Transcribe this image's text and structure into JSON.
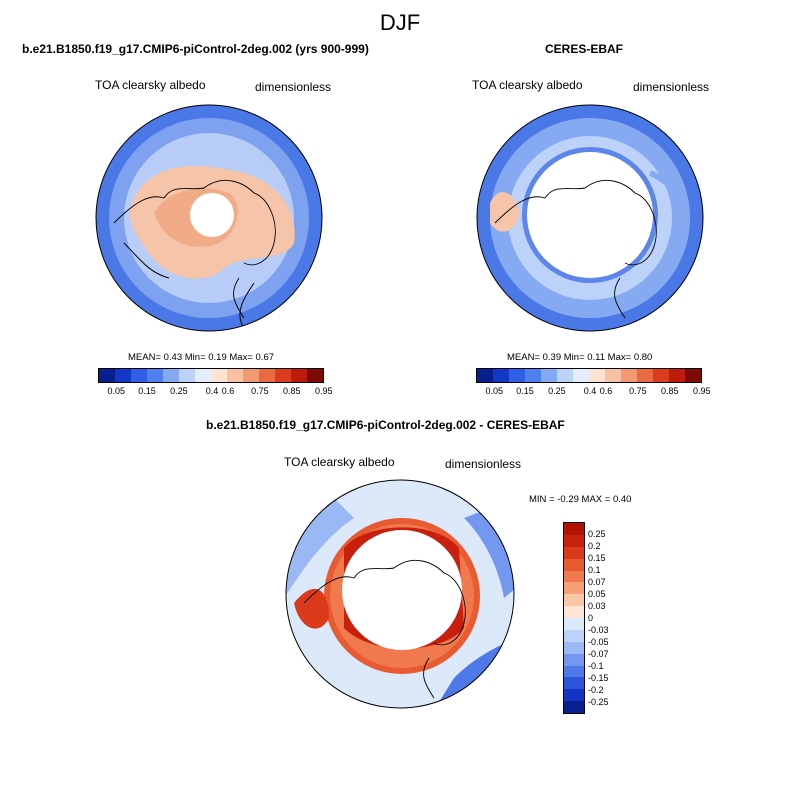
{
  "title": "DJF",
  "panels": [
    {
      "title": "b.e21.B1850.f19_g17.CMIP6-piControl-2deg.002 (yrs 900-999)",
      "variable": "TOA clearsky albedo",
      "units": "dimensionless",
      "stats": "MEAN=   0.43  Min=   0.19  Max=   0.67"
    },
    {
      "title": "CERES-EBAF",
      "variable": "TOA clearsky albedo",
      "units": "dimensionless",
      "stats": "MEAN=   0.39  Min=   0.11  Max=   0.80"
    },
    {
      "title": "b.e21.B1850.f19_g17.CMIP6-piControl-2deg.002 - CERES-EBAF",
      "variable": "TOA clearsky albedo",
      "units": "dimensionless",
      "stats": "MIN =  -0.29 MAX =   0.40"
    }
  ],
  "colorbar_abs": {
    "colors": [
      "#0a1f8f",
      "#1238c8",
      "#2e5fe6",
      "#4f80f0",
      "#86aaf2",
      "#bcd2f8",
      "#e4eefc",
      "#fce3d2",
      "#f8c1a3",
      "#f29a72",
      "#ea6a44",
      "#dc3c1e",
      "#bd1b0c",
      "#7d0a04"
    ],
    "ticks": [
      "0.05",
      "0.15",
      "0.25",
      "0.4",
      "0.6",
      "0.75",
      "0.85",
      "0.95"
    ]
  },
  "colorbar_diff": {
    "colors": [
      "#b11204",
      "#c8200d",
      "#da3a1a",
      "#e85a30",
      "#f07a4e",
      "#f6a07a",
      "#fbc6a8",
      "#fde6d6",
      "#dce9fb",
      "#bcd2f8",
      "#9ab8f3",
      "#7498ef",
      "#4f78e8",
      "#2c55dc",
      "#1435c4",
      "#0a1f8f"
    ],
    "ticks": [
      "0.25",
      "0.2",
      "0.15",
      "0.1",
      "0.07",
      "0.05",
      "0.03",
      "0",
      "-0.03",
      "-0.05",
      "-0.07",
      "-0.1",
      "-0.15",
      "-0.2",
      "-0.25"
    ]
  }
}
